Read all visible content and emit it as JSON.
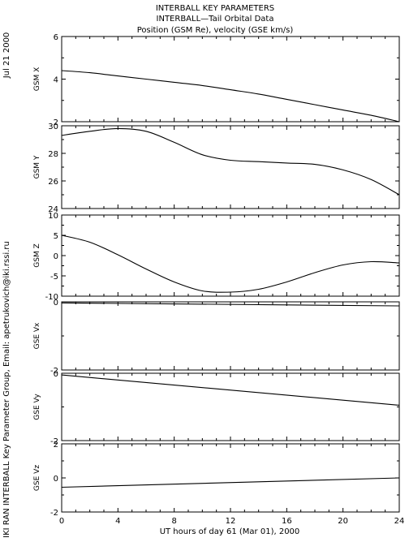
{
  "header": {
    "title1": "INTERBALL KEY PARAMETERS",
    "title2": "INTERBALL—Tail Orbital Data",
    "title3": "Position (GSM Re), velocity (GSE km/s)"
  },
  "side": {
    "date": "Jul 21 2000",
    "credit": "IKI RAN INTERBALL Key Parameter Group, Email: apetrukovich@iki.rssi.ru"
  },
  "chart_data": {
    "type": "line",
    "xlabel": "UT hours of day  61 (Mar 01), 2000",
    "xlim": [
      0,
      24
    ],
    "xticks": [
      "0",
      "4",
      "8",
      "12",
      "16",
      "20",
      "24"
    ],
    "panels": [
      {
        "ylabel": "GSM X",
        "ylim": [
          2,
          6
        ],
        "yticks": [
          "2",
          "4",
          "6"
        ],
        "x": [
          0,
          2,
          4,
          6,
          8,
          10,
          12,
          14,
          16,
          18,
          20,
          22,
          24
        ],
        "values": [
          4.4,
          4.3,
          4.15,
          4.0,
          3.85,
          3.7,
          3.5,
          3.3,
          3.05,
          2.8,
          2.55,
          2.3,
          2.0
        ]
      },
      {
        "ylabel": "GSM Y",
        "ylim": [
          24,
          30
        ],
        "yticks": [
          "24",
          "26",
          "28",
          "30"
        ],
        "x": [
          0,
          2,
          4,
          6,
          8,
          10,
          12,
          14,
          16,
          18,
          20,
          22,
          24
        ],
        "values": [
          29.3,
          29.6,
          29.8,
          29.6,
          28.8,
          27.9,
          27.5,
          27.4,
          27.3,
          27.2,
          26.8,
          26.1,
          25.0
        ]
      },
      {
        "ylabel": "GSM Z",
        "ylim": [
          -10,
          10
        ],
        "yticks": [
          "-10",
          "-5",
          "0",
          "5",
          "10"
        ],
        "x": [
          0,
          2,
          4,
          6,
          8,
          10,
          12,
          14,
          16,
          18,
          20,
          22,
          24
        ],
        "values": [
          5.0,
          3.3,
          0.2,
          -3.3,
          -6.5,
          -8.7,
          -9.0,
          -8.3,
          -6.5,
          -4.2,
          -2.3,
          -1.5,
          -1.8
        ]
      },
      {
        "ylabel": "GSE Vx",
        "ylim": [
          -2,
          0
        ],
        "yticks": [
          "-2",
          "0"
        ],
        "x": [
          0,
          24
        ],
        "values": [
          -0.03,
          -0.12
        ]
      },
      {
        "ylabel": "GSE Vy",
        "ylim": [
          -2,
          0
        ],
        "yticks": [
          "-2",
          "0"
        ],
        "x": [
          0,
          24
        ],
        "values": [
          -0.05,
          -0.95
        ]
      },
      {
        "ylabel": "GSE Vz",
        "ylim": [
          -2,
          2
        ],
        "yticks": [
          "-2",
          "0",
          "2"
        ],
        "x": [
          0,
          24
        ],
        "values": [
          -0.55,
          0.0
        ]
      }
    ]
  }
}
